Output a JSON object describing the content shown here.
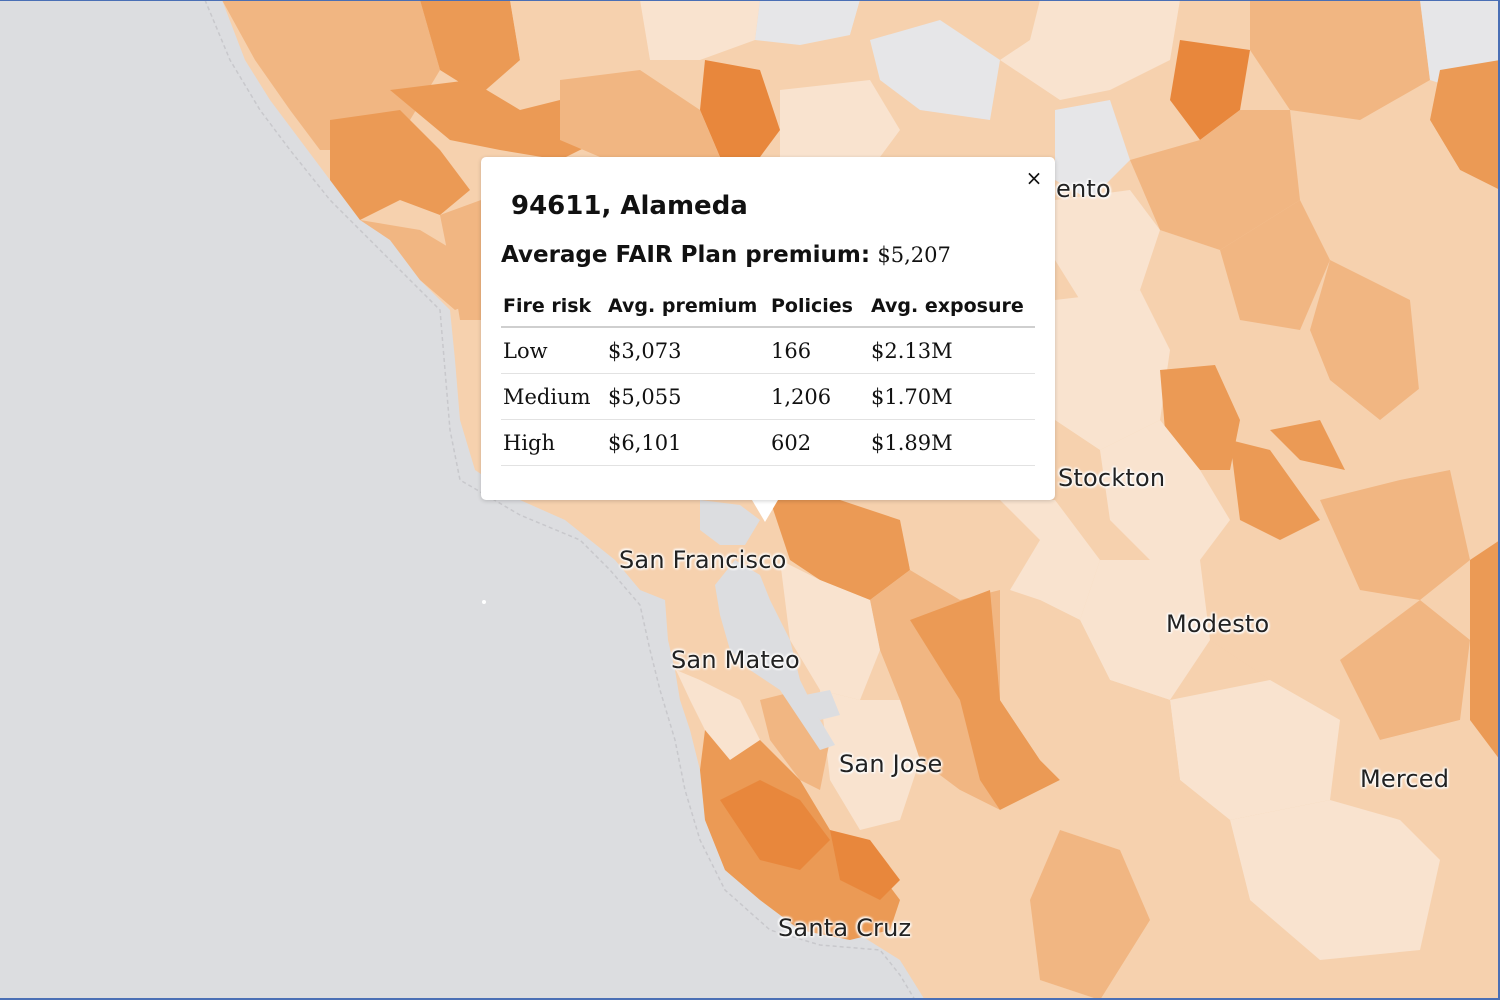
{
  "map": {
    "colors": {
      "water": "#dcdde0",
      "land_pale": "#f9e3cf",
      "land_light": "#f6d1ae",
      "land_mid": "#f1b682",
      "land_strong": "#eb9a55",
      "land_dark": "#e8873c",
      "no_data": "#e6e6e8",
      "accent_frame": "#4a6fb5"
    },
    "city_labels": [
      "ento",
      "Stockton",
      "San Francisco",
      "Modesto",
      "San Mateo",
      "San Jose",
      "Merced",
      "Santa Cruz"
    ]
  },
  "popup": {
    "title": "94611, Alameda",
    "summary_label": "Average FAIR Plan premium:",
    "summary_value": "$5,207",
    "close_icon": "close-icon",
    "close_label": "×",
    "table": {
      "headers": [
        "Fire risk",
        "Avg. premium",
        "Policies",
        "Avg. exposure"
      ],
      "rows": [
        [
          "Low",
          "$3,073",
          "166",
          "$2.13M"
        ],
        [
          "Medium",
          "$5,055",
          "1,206",
          "$1.70M"
        ],
        [
          "High",
          "$6,101",
          "602",
          "$1.89M"
        ]
      ]
    }
  }
}
